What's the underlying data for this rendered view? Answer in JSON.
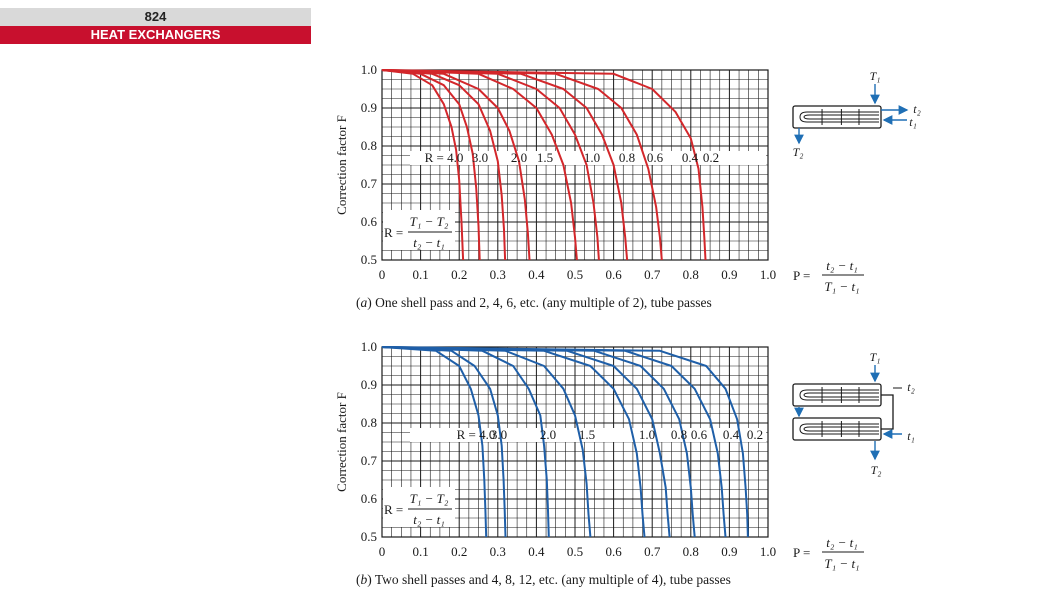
{
  "header": {
    "page_number": "824",
    "section_title": "HEAT EXCHANGERS"
  },
  "colors": {
    "header_band": "#c8102e",
    "header_number_band": "#d9d9d9",
    "chart_a_curves": "#d3272b",
    "chart_b_curves": "#1f5fa8",
    "diagram_arrows": "#1f6fb5"
  },
  "chart_data": [
    {
      "type": "line",
      "caption_letter": "a",
      "caption_text": "One shell pass and 2, 4, 6, etc. (any multiple of 2), tube passes",
      "ylabel": "Correction factor F",
      "xlabel_formula": {
        "lhs": "P =",
        "num": "t₂ − t₁",
        "den": "T₁ − t₁"
      },
      "r_formula": {
        "lhs": "R =",
        "num": "T₁ − T₂",
        "den": "t₂ − t₁"
      },
      "xlim": [
        0,
        1.0
      ],
      "ylim": [
        0.5,
        1.0
      ],
      "x_ticks": [
        "0",
        "0.1",
        "0.2",
        "0.3",
        "0.4",
        "0.5",
        "0.6",
        "0.7",
        "0.8",
        "0.9",
        "1.0"
      ],
      "y_ticks": [
        "0.5",
        "0.6",
        "0.7",
        "0.8",
        "0.9",
        "1.0"
      ],
      "grid": true,
      "curve_labels": [
        "R = 4.0",
        "3.0",
        "2.0",
        "1.5",
        "1.0",
        "0.8",
        "0.6",
        "0.4",
        "0.2"
      ],
      "series": [
        {
          "name": "4.0",
          "x": [
            0,
            0.08,
            0.13,
            0.16,
            0.18,
            0.192,
            0.2,
            0.206,
            0.21
          ],
          "y": [
            1.0,
            0.99,
            0.96,
            0.91,
            0.85,
            0.79,
            0.71,
            0.6,
            0.5
          ]
        },
        {
          "name": "3.0",
          "x": [
            0,
            0.1,
            0.16,
            0.2,
            0.22,
            0.235,
            0.244,
            0.25,
            0.253
          ],
          "y": [
            1.0,
            0.99,
            0.96,
            0.91,
            0.85,
            0.78,
            0.69,
            0.59,
            0.5
          ]
        },
        {
          "name": "2.0",
          "x": [
            0,
            0.13,
            0.2,
            0.25,
            0.28,
            0.3,
            0.31,
            0.316,
            0.319
          ],
          "y": [
            1.0,
            0.99,
            0.96,
            0.91,
            0.84,
            0.76,
            0.67,
            0.58,
            0.5
          ]
        },
        {
          "name": "1.5",
          "x": [
            0,
            0.16,
            0.25,
            0.3,
            0.33,
            0.355,
            0.37,
            0.378,
            0.382
          ],
          "y": [
            1.0,
            0.99,
            0.95,
            0.9,
            0.84,
            0.76,
            0.66,
            0.57,
            0.5
          ]
        },
        {
          "name": "1.0",
          "x": [
            0,
            0.25,
            0.34,
            0.4,
            0.44,
            0.47,
            0.49,
            0.5,
            0.505
          ],
          "y": [
            1.0,
            0.99,
            0.95,
            0.9,
            0.83,
            0.75,
            0.65,
            0.56,
            0.5
          ]
        },
        {
          "name": "0.8",
          "x": [
            0,
            0.3,
            0.4,
            0.46,
            0.5,
            0.53,
            0.548,
            0.558,
            0.562
          ],
          "y": [
            1.0,
            0.99,
            0.95,
            0.9,
            0.83,
            0.75,
            0.65,
            0.56,
            0.5
          ]
        },
        {
          "name": "0.6",
          "x": [
            0,
            0.36,
            0.47,
            0.53,
            0.57,
            0.6,
            0.62,
            0.63,
            0.635
          ],
          "y": [
            1.0,
            0.99,
            0.95,
            0.9,
            0.83,
            0.75,
            0.65,
            0.56,
            0.5
          ]
        },
        {
          "name": "0.4",
          "x": [
            0,
            0.45,
            0.56,
            0.62,
            0.66,
            0.69,
            0.71,
            0.72,
            0.725
          ],
          "y": [
            1.0,
            0.99,
            0.95,
            0.9,
            0.83,
            0.74,
            0.64,
            0.56,
            0.5
          ]
        },
        {
          "name": "0.2",
          "x": [
            0,
            0.6,
            0.7,
            0.76,
            0.8,
            0.82,
            0.83,
            0.835,
            0.838
          ],
          "y": [
            1.0,
            0.99,
            0.95,
            0.89,
            0.82,
            0.74,
            0.64,
            0.56,
            0.5
          ]
        }
      ]
    },
    {
      "type": "line",
      "caption_letter": "b",
      "caption_text": "Two shell passes and 4, 8, 12, etc. (any multiple of 4), tube passes",
      "ylabel": "Correction factor F",
      "xlabel_formula": {
        "lhs": "P =",
        "num": "t₂ − t₁",
        "den": "T₁ − t₁"
      },
      "r_formula": {
        "lhs": "R =",
        "num": "T₁ − T₂",
        "den": "t₂ − t₁"
      },
      "xlim": [
        0,
        1.0
      ],
      "ylim": [
        0.5,
        1.0
      ],
      "x_ticks": [
        "0",
        "0.1",
        "0.2",
        "0.3",
        "0.4",
        "0.5",
        "0.6",
        "0.7",
        "0.8",
        "0.9",
        "1.0"
      ],
      "y_ticks": [
        "0.5",
        "0.6",
        "0.7",
        "0.8",
        "0.9",
        "1.0"
      ],
      "grid": true,
      "curve_labels": [
        "R = 4.0",
        "3.0",
        "2.0",
        "1.5",
        "1.0",
        "0.8",
        "0.6",
        "0.4",
        "0.2"
      ],
      "series": [
        {
          "name": "4.0",
          "x": [
            0,
            0.14,
            0.2,
            0.23,
            0.25,
            0.26,
            0.265,
            0.268,
            0.27
          ],
          "y": [
            1.0,
            0.99,
            0.95,
            0.89,
            0.82,
            0.74,
            0.65,
            0.57,
            0.5
          ]
        },
        {
          "name": "3.0",
          "x": [
            0,
            0.18,
            0.24,
            0.28,
            0.3,
            0.31,
            0.315,
            0.318,
            0.32
          ],
          "y": [
            1.0,
            0.99,
            0.95,
            0.89,
            0.82,
            0.74,
            0.65,
            0.57,
            0.5
          ]
        },
        {
          "name": "2.0",
          "x": [
            0,
            0.26,
            0.34,
            0.38,
            0.41,
            0.42,
            0.427,
            0.43,
            0.432
          ],
          "y": [
            1.0,
            0.99,
            0.95,
            0.89,
            0.82,
            0.74,
            0.65,
            0.57,
            0.5
          ]
        },
        {
          "name": "1.5",
          "x": [
            0,
            0.32,
            0.42,
            0.47,
            0.5,
            0.52,
            0.53,
            0.535,
            0.54
          ],
          "y": [
            1.0,
            0.99,
            0.95,
            0.89,
            0.82,
            0.73,
            0.64,
            0.56,
            0.5
          ]
        },
        {
          "name": "1.0",
          "x": [
            0,
            0.42,
            0.54,
            0.6,
            0.64,
            0.66,
            0.67,
            0.675,
            0.68
          ],
          "y": [
            1.0,
            0.99,
            0.95,
            0.89,
            0.81,
            0.72,
            0.63,
            0.56,
            0.5
          ]
        },
        {
          "name": "0.8",
          "x": [
            0,
            0.48,
            0.6,
            0.66,
            0.7,
            0.72,
            0.735,
            0.74,
            0.745
          ],
          "y": [
            1.0,
            0.99,
            0.95,
            0.89,
            0.81,
            0.72,
            0.63,
            0.56,
            0.5
          ]
        },
        {
          "name": "0.6",
          "x": [
            0,
            0.55,
            0.67,
            0.73,
            0.77,
            0.79,
            0.8,
            0.805,
            0.81
          ],
          "y": [
            1.0,
            0.99,
            0.95,
            0.89,
            0.81,
            0.72,
            0.63,
            0.56,
            0.5
          ]
        },
        {
          "name": "0.4",
          "x": [
            0,
            0.63,
            0.75,
            0.81,
            0.85,
            0.87,
            0.88,
            0.885,
            0.89
          ],
          "y": [
            1.0,
            0.99,
            0.95,
            0.89,
            0.81,
            0.72,
            0.63,
            0.56,
            0.5
          ]
        },
        {
          "name": "0.2",
          "x": [
            0,
            0.72,
            0.84,
            0.89,
            0.92,
            0.935,
            0.942,
            0.946,
            0.948
          ],
          "y": [
            1.0,
            0.99,
            0.95,
            0.89,
            0.81,
            0.72,
            0.63,
            0.56,
            0.5
          ]
        }
      ]
    }
  ],
  "diagrams": [
    {
      "top_label": "T₁",
      "right_labels": [
        "t₂",
        "t₁"
      ],
      "bottom_label": "T₂"
    },
    {
      "top_label": "T₁",
      "right_labels": [
        "t₂",
        "t₁"
      ],
      "bottom_label": "T₂"
    }
  ]
}
